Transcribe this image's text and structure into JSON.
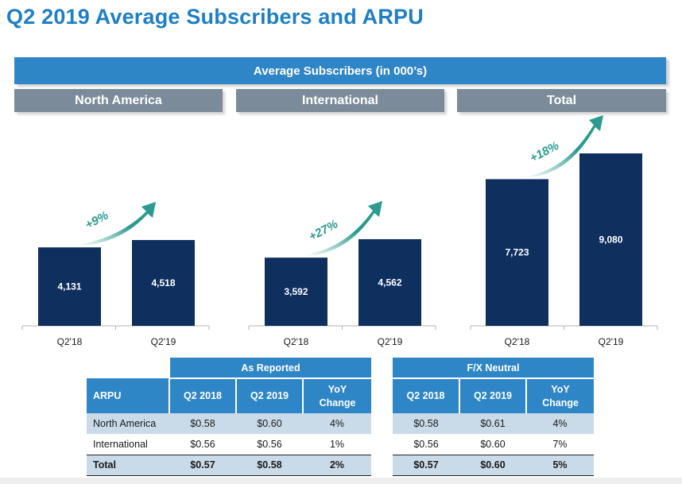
{
  "title": "Q2 2019 Average Subscribers and ARPU",
  "banner": "Average Subscribers (in 000’s)",
  "panels": [
    {
      "name": "North America",
      "growth": "+9%"
    },
    {
      "name": "International",
      "growth": "+27%"
    },
    {
      "name": "Total",
      "growth": "+18%"
    }
  ],
  "chart_data": [
    {
      "type": "bar",
      "title": "North America",
      "categories": [
        "Q2'18",
        "Q2'19"
      ],
      "values": [
        4131,
        4518
      ],
      "labels": [
        "4,131",
        "4,518"
      ],
      "annotation": "+9%",
      "color": "#0f2f5f"
    },
    {
      "type": "bar",
      "title": "International",
      "categories": [
        "Q2'18",
        "Q2'19"
      ],
      "values": [
        3592,
        4562
      ],
      "labels": [
        "3,592",
        "4,562"
      ],
      "annotation": "+27%",
      "color": "#0f2f5f"
    },
    {
      "type": "bar",
      "title": "Total",
      "categories": [
        "Q2'18",
        "Q2'19"
      ],
      "values": [
        7723,
        9080
      ],
      "labels": [
        "7,723",
        "9,080"
      ],
      "annotation": "+18%",
      "color": "#0f2f5f"
    }
  ],
  "arpu_table": {
    "reported_header": "As Reported",
    "fx_header": "F/X Neutral",
    "row_header": "ARPU",
    "columns": [
      "Q2 2018",
      "Q2 2019",
      "YoY Change"
    ],
    "reported_rows": [
      {
        "label": "North America",
        "values": [
          "$0.58",
          "$0.60",
          "4%"
        ]
      },
      {
        "label": "International",
        "values": [
          "$0.56",
          "$0.56",
          "1%"
        ]
      },
      {
        "label": "Total",
        "values": [
          "$0.57",
          "$0.58",
          "2%"
        ]
      }
    ],
    "fx_rows": [
      [
        "$0.58",
        "$0.61",
        "4%"
      ],
      [
        "$0.56",
        "$0.60",
        "7%"
      ],
      [
        "$0.57",
        "$0.60",
        "5%"
      ]
    ]
  },
  "colors": {
    "title": "#1f7fc4",
    "banner": "#2f86c7",
    "panel_header": "#7b8b99",
    "bar": "#0f2f5f",
    "arrow": "#2b9a8f",
    "table_light": "#c9dbe9"
  }
}
